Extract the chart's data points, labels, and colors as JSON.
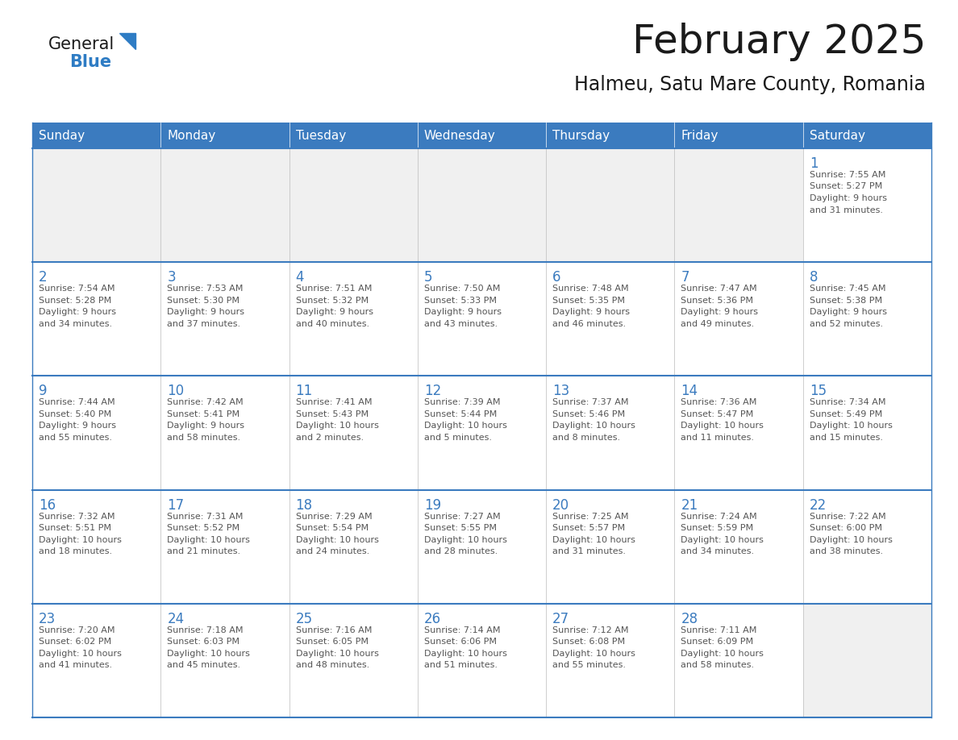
{
  "title": "February 2025",
  "subtitle": "Halmeu, Satu Mare County, Romania",
  "header_color": "#3b7bbf",
  "header_text_color": "#ffffff",
  "cell_bg_white": "#ffffff",
  "cell_bg_gray": "#f0f0f0",
  "cell_border_color": "#3b7bbf",
  "day_number_color": "#3b7bbf",
  "text_color": "#555555",
  "grid_line_color": "#bbbbbb",
  "days_of_week": [
    "Sunday",
    "Monday",
    "Tuesday",
    "Wednesday",
    "Thursday",
    "Friday",
    "Saturday"
  ],
  "logo_general_color": "#1a1a1a",
  "logo_blue_color": "#2e7cc4",
  "title_fontsize": 36,
  "subtitle_fontsize": 17,
  "header_fontsize": 11,
  "day_num_fontsize": 12,
  "cell_text_fontsize": 8,
  "weeks": [
    [
      {
        "day": "",
        "info": ""
      },
      {
        "day": "",
        "info": ""
      },
      {
        "day": "",
        "info": ""
      },
      {
        "day": "",
        "info": ""
      },
      {
        "day": "",
        "info": ""
      },
      {
        "day": "",
        "info": ""
      },
      {
        "day": "1",
        "info": "Sunrise: 7:55 AM\nSunset: 5:27 PM\nDaylight: 9 hours\nand 31 minutes."
      }
    ],
    [
      {
        "day": "2",
        "info": "Sunrise: 7:54 AM\nSunset: 5:28 PM\nDaylight: 9 hours\nand 34 minutes."
      },
      {
        "day": "3",
        "info": "Sunrise: 7:53 AM\nSunset: 5:30 PM\nDaylight: 9 hours\nand 37 minutes."
      },
      {
        "day": "4",
        "info": "Sunrise: 7:51 AM\nSunset: 5:32 PM\nDaylight: 9 hours\nand 40 minutes."
      },
      {
        "day": "5",
        "info": "Sunrise: 7:50 AM\nSunset: 5:33 PM\nDaylight: 9 hours\nand 43 minutes."
      },
      {
        "day": "6",
        "info": "Sunrise: 7:48 AM\nSunset: 5:35 PM\nDaylight: 9 hours\nand 46 minutes."
      },
      {
        "day": "7",
        "info": "Sunrise: 7:47 AM\nSunset: 5:36 PM\nDaylight: 9 hours\nand 49 minutes."
      },
      {
        "day": "8",
        "info": "Sunrise: 7:45 AM\nSunset: 5:38 PM\nDaylight: 9 hours\nand 52 minutes."
      }
    ],
    [
      {
        "day": "9",
        "info": "Sunrise: 7:44 AM\nSunset: 5:40 PM\nDaylight: 9 hours\nand 55 minutes."
      },
      {
        "day": "10",
        "info": "Sunrise: 7:42 AM\nSunset: 5:41 PM\nDaylight: 9 hours\nand 58 minutes."
      },
      {
        "day": "11",
        "info": "Sunrise: 7:41 AM\nSunset: 5:43 PM\nDaylight: 10 hours\nand 2 minutes."
      },
      {
        "day": "12",
        "info": "Sunrise: 7:39 AM\nSunset: 5:44 PM\nDaylight: 10 hours\nand 5 minutes."
      },
      {
        "day": "13",
        "info": "Sunrise: 7:37 AM\nSunset: 5:46 PM\nDaylight: 10 hours\nand 8 minutes."
      },
      {
        "day": "14",
        "info": "Sunrise: 7:36 AM\nSunset: 5:47 PM\nDaylight: 10 hours\nand 11 minutes."
      },
      {
        "day": "15",
        "info": "Sunrise: 7:34 AM\nSunset: 5:49 PM\nDaylight: 10 hours\nand 15 minutes."
      }
    ],
    [
      {
        "day": "16",
        "info": "Sunrise: 7:32 AM\nSunset: 5:51 PM\nDaylight: 10 hours\nand 18 minutes."
      },
      {
        "day": "17",
        "info": "Sunrise: 7:31 AM\nSunset: 5:52 PM\nDaylight: 10 hours\nand 21 minutes."
      },
      {
        "day": "18",
        "info": "Sunrise: 7:29 AM\nSunset: 5:54 PM\nDaylight: 10 hours\nand 24 minutes."
      },
      {
        "day": "19",
        "info": "Sunrise: 7:27 AM\nSunset: 5:55 PM\nDaylight: 10 hours\nand 28 minutes."
      },
      {
        "day": "20",
        "info": "Sunrise: 7:25 AM\nSunset: 5:57 PM\nDaylight: 10 hours\nand 31 minutes."
      },
      {
        "day": "21",
        "info": "Sunrise: 7:24 AM\nSunset: 5:59 PM\nDaylight: 10 hours\nand 34 minutes."
      },
      {
        "day": "22",
        "info": "Sunrise: 7:22 AM\nSunset: 6:00 PM\nDaylight: 10 hours\nand 38 minutes."
      }
    ],
    [
      {
        "day": "23",
        "info": "Sunrise: 7:20 AM\nSunset: 6:02 PM\nDaylight: 10 hours\nand 41 minutes."
      },
      {
        "day": "24",
        "info": "Sunrise: 7:18 AM\nSunset: 6:03 PM\nDaylight: 10 hours\nand 45 minutes."
      },
      {
        "day": "25",
        "info": "Sunrise: 7:16 AM\nSunset: 6:05 PM\nDaylight: 10 hours\nand 48 minutes."
      },
      {
        "day": "26",
        "info": "Sunrise: 7:14 AM\nSunset: 6:06 PM\nDaylight: 10 hours\nand 51 minutes."
      },
      {
        "day": "27",
        "info": "Sunrise: 7:12 AM\nSunset: 6:08 PM\nDaylight: 10 hours\nand 55 minutes."
      },
      {
        "day": "28",
        "info": "Sunrise: 7:11 AM\nSunset: 6:09 PM\nDaylight: 10 hours\nand 58 minutes."
      },
      {
        "day": "",
        "info": ""
      }
    ]
  ]
}
